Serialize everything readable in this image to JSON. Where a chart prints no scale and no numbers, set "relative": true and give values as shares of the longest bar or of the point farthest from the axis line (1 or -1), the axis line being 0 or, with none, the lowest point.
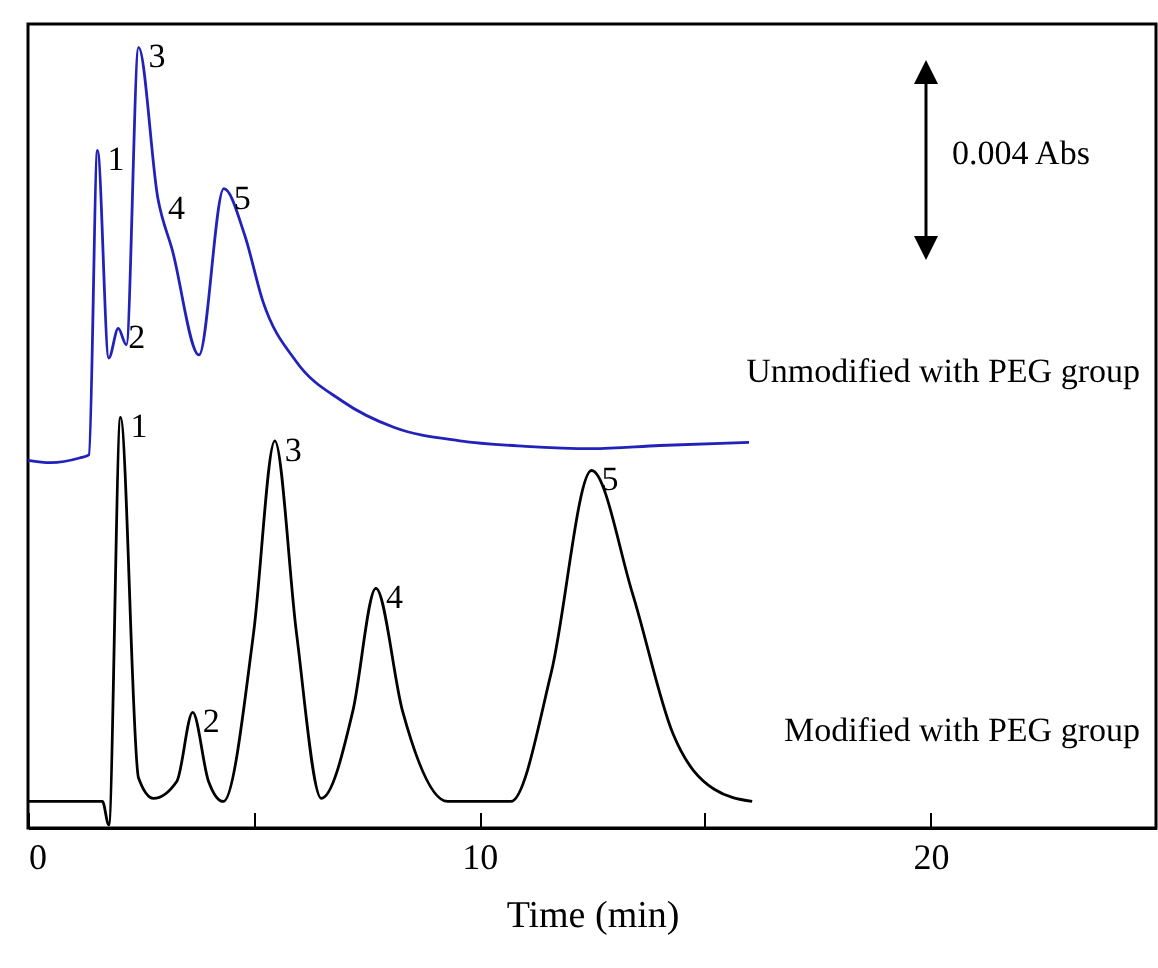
{
  "chart_data": {
    "type": "line",
    "xlabel": "Time (min)",
    "relative": true,
    "xlim": [
      0,
      25
    ],
    "xticks": [
      0,
      {
        "value": 5,
        "label": null
      },
      10,
      {
        "value": 15,
        "label": null
      },
      20
    ],
    "series": [
      {
        "name": "Unmodified with PEG group",
        "color": "#2222bb",
        "x": [
          0,
          0.5,
          1.14,
          1.35,
          1.54,
          1.79,
          2.0,
          2.18,
          2.45,
          2.88,
          3.2,
          3.79,
          4.34,
          4.8,
          5.21,
          5.94,
          6.96,
          8.12,
          9.57,
          11.03,
          12.5,
          14,
          15.98
        ],
        "values": [
          0.471,
          0.468,
          0.474,
          0.478,
          0.868,
          0.602,
          0.64,
          0.619,
          1.0,
          0.806,
          0.74,
          0.606,
          0.819,
          0.76,
          0.674,
          0.598,
          0.547,
          0.513,
          0.496,
          0.489,
          0.486,
          0.49,
          0.494
        ]
      },
      {
        "name": "Modified with PEG group",
        "color": "#000000",
        "x": [
          0,
          1.65,
          1.79,
          2.05,
          2.45,
          2.78,
          3.3,
          3.65,
          4.0,
          4.33,
          5.0,
          5.47,
          5.95,
          6.5,
          7.2,
          7.71,
          8.3,
          9.3,
          10.7,
          11.6,
          12.49,
          13.4,
          14.3,
          15.2,
          16.05
        ],
        "values": [
          0.034,
          0.034,
          0.004,
          0.526,
          0.064,
          0.038,
          0.06,
          0.148,
          0.06,
          0.034,
          0.25,
          0.496,
          0.25,
          0.038,
          0.15,
          0.307,
          0.15,
          0.034,
          0.034,
          0.2,
          0.458,
          0.3,
          0.12,
          0.05,
          0.034
        ]
      }
    ],
    "annotations": [
      {
        "text": "1",
        "x": 1.54,
        "y": 0.868
      },
      {
        "text": "2",
        "x": 2.0,
        "y": 0.64
      },
      {
        "text": "3",
        "x": 2.45,
        "y": 1.0
      },
      {
        "text": "4",
        "x": 2.88,
        "y": 0.806
      },
      {
        "text": "5",
        "x": 4.34,
        "y": 0.819
      },
      {
        "text": "1",
        "x": 2.05,
        "y": 0.526
      },
      {
        "text": "2",
        "x": 3.65,
        "y": 0.148
      },
      {
        "text": "3",
        "x": 5.47,
        "y": 0.496
      },
      {
        "text": "4",
        "x": 7.71,
        "y": 0.307
      },
      {
        "text": "5",
        "x": 12.49,
        "y": 0.458
      },
      "0.004 Abs"
    ]
  }
}
